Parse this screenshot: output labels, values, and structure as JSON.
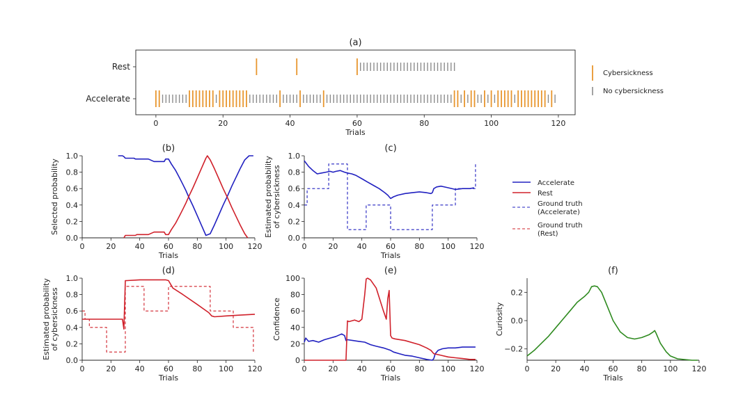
{
  "colors": {
    "cybersickness": "#e8962e",
    "no_cybersickness": "#8c8c8c",
    "accelerate": "#2020c0",
    "rest": "#d0202a",
    "curiosity": "#2e8a1f"
  },
  "legend_a": {
    "items": [
      "Cybersickness",
      "No cybersickness"
    ]
  },
  "legend_bc": {
    "items": [
      "Accelerate",
      "Rest",
      "Ground truth\n(Accelerate)",
      "Ground truth\n(Rest)"
    ]
  },
  "chart_data": [
    {
      "id": "a",
      "type": "event",
      "title": "(a)",
      "xlabel": "Trials",
      "ylabel": "",
      "xlim": [
        -6,
        125
      ],
      "xticks": [
        0,
        20,
        40,
        60,
        80,
        100,
        120
      ],
      "rows": [
        "Rest",
        "Accelerate"
      ],
      "rest_cyber": [
        30,
        42,
        60
      ],
      "rest_nocyber_range": [
        61,
        89
      ],
      "acc_cyber": [
        0,
        1,
        10,
        11,
        12,
        13,
        14,
        15,
        16,
        17,
        19,
        20,
        21,
        22,
        23,
        24,
        25,
        26,
        27,
        37,
        43,
        50,
        89,
        90,
        92,
        94,
        95,
        98,
        100,
        102,
        103,
        104,
        105,
        106,
        108,
        109,
        110,
        111,
        112,
        113,
        114,
        115,
        116,
        118
      ],
      "acc_nocyber_range": [
        2,
        119
      ]
    },
    {
      "id": "b",
      "type": "line",
      "title": "(b)",
      "xlabel": "Trials",
      "ylabel": "Selected probability",
      "xlim": [
        0,
        120
      ],
      "ylim": [
        0,
        1.0
      ],
      "xticks": [
        0,
        20,
        40,
        60,
        80,
        100,
        120
      ],
      "yticks": [
        0.0,
        0.2,
        0.4,
        0.6,
        0.8,
        1.0
      ],
      "series": [
        {
          "name": "Accelerate",
          "color_key": "accelerate",
          "dash": false,
          "x": [
            25,
            28,
            29,
            30,
            36,
            37,
            38,
            46,
            50,
            51,
            54,
            56,
            57,
            58,
            59,
            60,
            62,
            65,
            68,
            70,
            72,
            74,
            77,
            80,
            83,
            86,
            89,
            92,
            95,
            98,
            101,
            104,
            107,
            110,
            113,
            116,
            119
          ],
          "y": [
            1.0,
            1.0,
            0.99,
            0.97,
            0.97,
            0.96,
            0.96,
            0.96,
            0.93,
            0.93,
            0.93,
            0.93,
            0.93,
            0.96,
            0.96,
            0.96,
            0.9,
            0.82,
            0.72,
            0.65,
            0.58,
            0.5,
            0.39,
            0.27,
            0.15,
            0.03,
            0.05,
            0.16,
            0.28,
            0.4,
            0.51,
            0.63,
            0.74,
            0.85,
            0.95,
            1.0,
            1.0
          ]
        },
        {
          "name": "Rest",
          "color_key": "rest",
          "dash": false,
          "x": [
            29,
            30,
            37,
            38,
            46,
            50,
            51,
            54,
            56,
            57,
            58,
            59,
            60,
            62,
            65,
            68,
            70,
            72,
            74,
            77,
            80,
            83,
            86,
            87,
            89,
            92,
            95,
            98,
            101,
            104,
            107,
            110,
            113,
            115
          ],
          "y": [
            0.0,
            0.03,
            0.03,
            0.04,
            0.04,
            0.07,
            0.07,
            0.07,
            0.07,
            0.07,
            0.04,
            0.04,
            0.04,
            0.1,
            0.18,
            0.28,
            0.35,
            0.42,
            0.5,
            0.61,
            0.73,
            0.85,
            0.97,
            1.0,
            0.95,
            0.84,
            0.72,
            0.6,
            0.49,
            0.37,
            0.26,
            0.15,
            0.05,
            0.0
          ]
        }
      ]
    },
    {
      "id": "c",
      "type": "line",
      "title": "(c)",
      "xlabel": "Trials",
      "ylabel": "Estimated probability\nof cybersickness",
      "xlim": [
        0,
        120
      ],
      "ylim": [
        0,
        1.0
      ],
      "xticks": [
        0,
        20,
        40,
        60,
        80,
        100,
        120
      ],
      "yticks": [
        0.0,
        0.2,
        0.4,
        0.6,
        0.8,
        1.0
      ],
      "series": [
        {
          "name": "Accelerate",
          "color_key": "accelerate",
          "dash": false,
          "x": [
            0,
            3,
            6,
            9,
            12,
            15,
            18,
            20,
            22,
            25,
            28,
            30,
            33,
            36,
            40,
            44,
            48,
            52,
            56,
            58,
            60,
            62,
            65,
            70,
            75,
            80,
            85,
            88,
            89,
            90,
            92,
            95,
            100,
            105,
            110,
            115,
            118
          ],
          "y": [
            0.94,
            0.87,
            0.82,
            0.78,
            0.79,
            0.8,
            0.81,
            0.8,
            0.81,
            0.82,
            0.8,
            0.79,
            0.78,
            0.76,
            0.72,
            0.68,
            0.64,
            0.6,
            0.55,
            0.52,
            0.48,
            0.5,
            0.52,
            0.54,
            0.55,
            0.56,
            0.55,
            0.54,
            0.55,
            0.6,
            0.62,
            0.63,
            0.61,
            0.59,
            0.6,
            0.6,
            0.61
          ]
        },
        {
          "name": "Ground truth (Accelerate)",
          "color_key": "accelerate",
          "dash": true,
          "x": [
            0,
            2,
            2,
            17,
            17,
            30,
            30,
            43,
            43,
            60,
            60,
            89,
            89,
            105,
            105,
            119,
            119
          ],
          "y": [
            0.4,
            0.4,
            0.6,
            0.6,
            0.9,
            0.9,
            0.1,
            0.1,
            0.4,
            0.4,
            0.1,
            0.1,
            0.4,
            0.4,
            0.6,
            0.6,
            0.9
          ]
        }
      ]
    },
    {
      "id": "d",
      "type": "line",
      "title": "(d)",
      "xlabel": "Trials",
      "ylabel": "Estimated probability\nof cybersickness",
      "xlim": [
        0,
        120
      ],
      "ylim": [
        0,
        1.0
      ],
      "xticks": [
        0,
        20,
        40,
        60,
        80,
        100,
        120
      ],
      "yticks": [
        0.0,
        0.2,
        0.4,
        0.6,
        0.8,
        1.0
      ],
      "series": [
        {
          "name": "Rest",
          "color_key": "rest",
          "dash": false,
          "x": [
            0,
            2,
            10,
            20,
            28,
            29,
            30,
            31,
            40,
            50,
            58,
            60,
            63,
            70,
            80,
            88,
            90,
            92,
            100,
            110,
            120
          ],
          "y": [
            0.5,
            0.5,
            0.5,
            0.5,
            0.5,
            0.38,
            0.97,
            0.97,
            0.98,
            0.98,
            0.98,
            0.97,
            0.88,
            0.8,
            0.68,
            0.58,
            0.54,
            0.53,
            0.54,
            0.55,
            0.56
          ]
        },
        {
          "name": "Ground truth (Rest)",
          "color_key": "rest",
          "dash": true,
          "x": [
            0,
            2,
            2,
            5,
            5,
            17,
            17,
            30,
            30,
            43,
            43,
            60,
            60,
            89,
            89,
            105,
            105,
            119,
            119
          ],
          "y": [
            0.6,
            0.6,
            0.5,
            0.5,
            0.4,
            0.4,
            0.1,
            0.1,
            0.9,
            0.9,
            0.6,
            0.6,
            0.9,
            0.9,
            0.6,
            0.6,
            0.4,
            0.4,
            0.1
          ]
        }
      ]
    },
    {
      "id": "e",
      "type": "line",
      "title": "(e)",
      "xlabel": "Trials",
      "ylabel": "Confidence",
      "xlim": [
        0,
        120
      ],
      "ylim": [
        0,
        100
      ],
      "xticks": [
        0,
        20,
        40,
        60,
        80,
        100,
        120
      ],
      "yticks": [
        0,
        20,
        40,
        60,
        80,
        100
      ],
      "series": [
        {
          "name": "Accelerate",
          "color_key": "accelerate",
          "dash": false,
          "x": [
            0,
            1,
            3,
            6,
            10,
            14,
            18,
            22,
            26,
            28,
            29,
            30,
            34,
            38,
            42,
            46,
            50,
            55,
            60,
            62,
            66,
            70,
            75,
            80,
            85,
            89,
            90,
            91,
            93,
            96,
            100,
            105,
            110,
            115,
            119
          ],
          "y": [
            22,
            27,
            23,
            24,
            22,
            25,
            27,
            29,
            32,
            30,
            24,
            25,
            24,
            23,
            22,
            19,
            17,
            15,
            12,
            10,
            8,
            6,
            5,
            3,
            1,
            0,
            2,
            8,
            12,
            14,
            15,
            15,
            16,
            16,
            16
          ]
        },
        {
          "name": "Rest",
          "color_key": "rest",
          "dash": false,
          "x": [
            0,
            28,
            29,
            30,
            31,
            35,
            38,
            40,
            42,
            43,
            44,
            46,
            50,
            55,
            57,
            58,
            59,
            60,
            61,
            63,
            70,
            80,
            85,
            88,
            90,
            95,
            100,
            105,
            110,
            115,
            119
          ],
          "y": [
            0,
            0,
            0,
            48,
            47,
            49,
            47,
            50,
            80,
            99,
            100,
            98,
            88,
            60,
            50,
            75,
            85,
            30,
            27,
            26,
            24,
            19,
            15,
            12,
            8,
            6,
            4,
            3,
            2,
            1,
            1
          ]
        }
      ]
    },
    {
      "id": "f",
      "type": "line",
      "title": "(f)",
      "xlabel": "Trials",
      "ylabel": "Curiosity",
      "xlim": [
        0,
        120
      ],
      "ylim": [
        -0.28,
        0.3
      ],
      "xticks": [
        0,
        20,
        40,
        60,
        80,
        100,
        120
      ],
      "yticks": [
        -0.2,
        0.0,
        0.2
      ],
      "series": [
        {
          "name": "Curiosity",
          "color_key": "curiosity",
          "dash": false,
          "x": [
            0,
            5,
            10,
            15,
            20,
            25,
            30,
            35,
            40,
            43,
            45,
            47,
            49,
            52,
            56,
            60,
            65,
            70,
            75,
            80,
            85,
            88,
            89,
            90,
            93,
            97,
            100,
            105,
            110,
            115,
            119
          ],
          "y": [
            -0.25,
            -0.21,
            -0.16,
            -0.11,
            -0.05,
            0.01,
            0.07,
            0.13,
            0.17,
            0.2,
            0.24,
            0.245,
            0.24,
            0.2,
            0.1,
            0.0,
            -0.08,
            -0.12,
            -0.13,
            -0.12,
            -0.1,
            -0.08,
            -0.07,
            -0.09,
            -0.16,
            -0.22,
            -0.25,
            -0.27,
            -0.275,
            -0.28,
            -0.28
          ]
        }
      ]
    }
  ]
}
